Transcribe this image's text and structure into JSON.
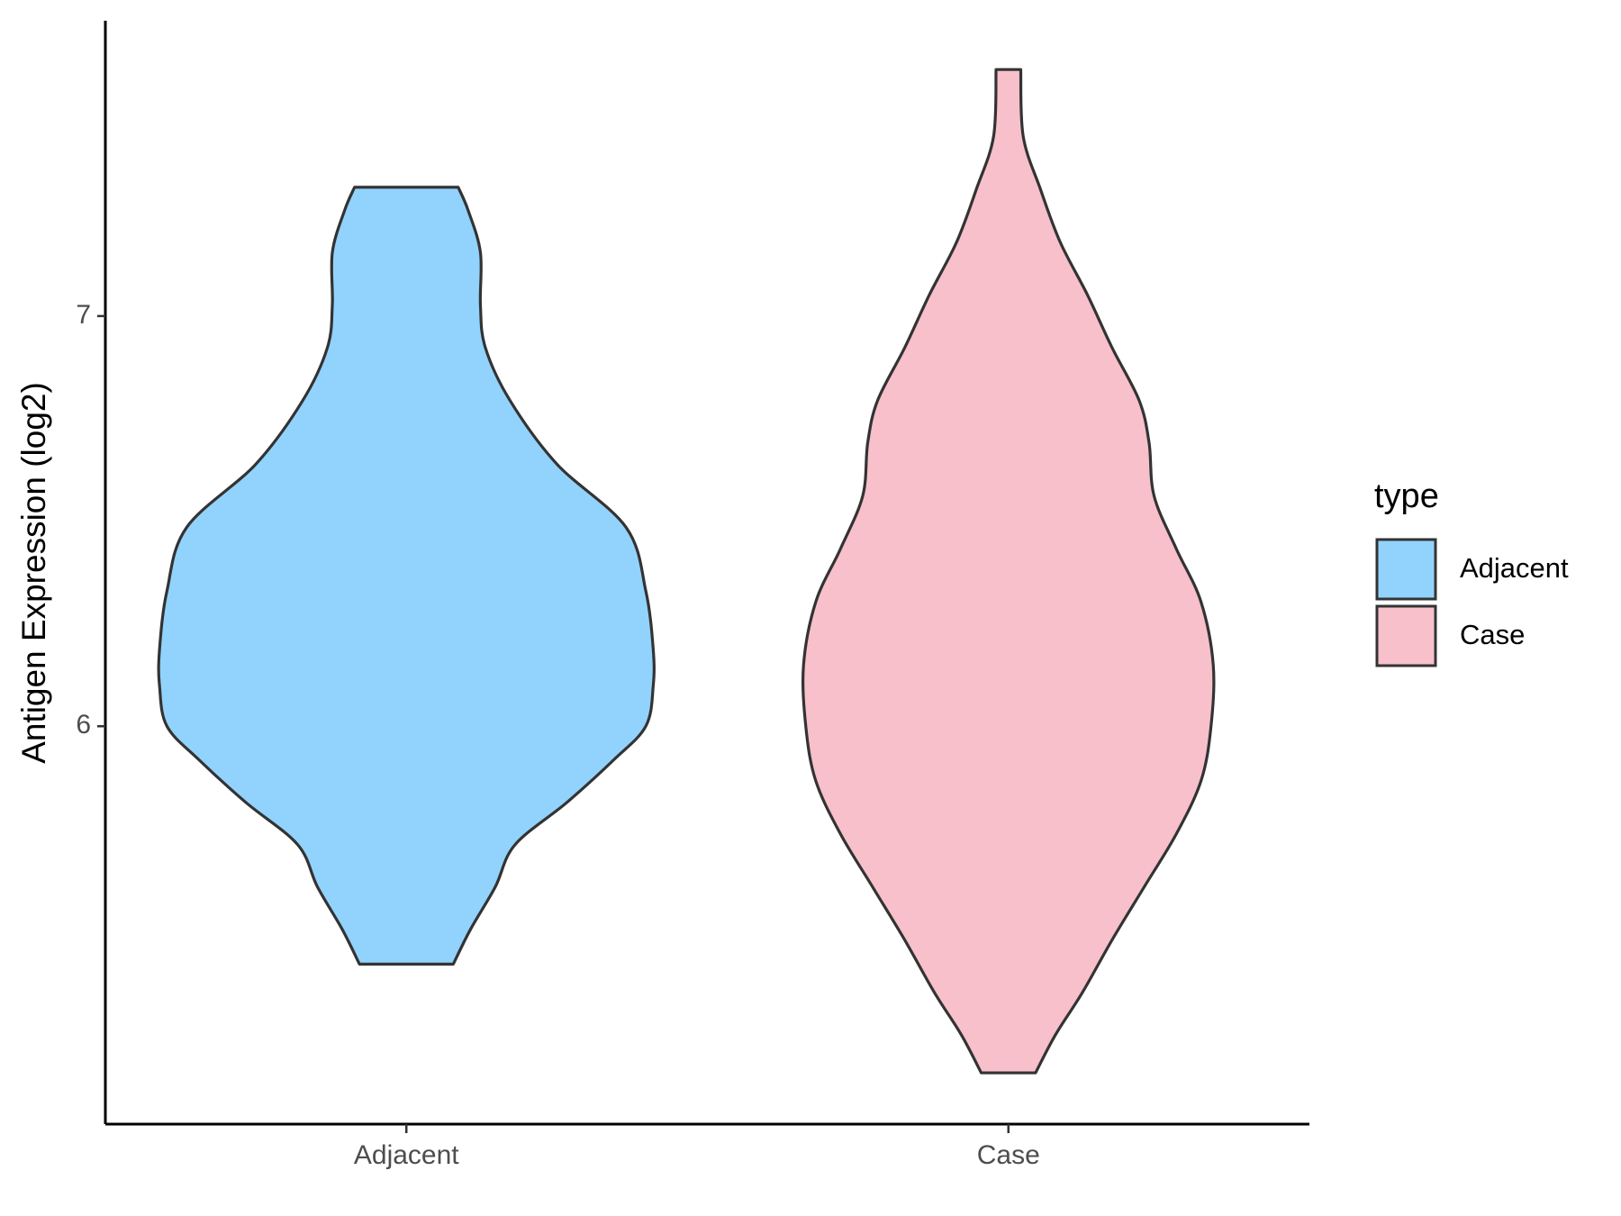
{
  "chart_data": {
    "type": "violin",
    "y_label": "Antigen Expression (log2)",
    "legend_title": "type",
    "categories": [
      "Adjacent",
      "Case"
    ],
    "ylim": [
      5.03,
      7.72
    ],
    "yticks": [
      6,
      7
    ],
    "series": [
      {
        "name": "Adjacent",
        "color": "#92d3fd",
        "y": [
          5.42,
          5.505,
          5.608,
          5.711,
          5.814,
          5.918,
          6.0,
          6.098,
          6.188,
          6.33,
          6.485,
          6.639,
          6.794,
          6.923,
          7.026,
          7.155,
          7.258,
          7.314
        ],
        "density": [
          0.19,
          0.26,
          0.36,
          0.44,
          0.65,
          0.84,
          0.97,
          1,
          1,
          0.97,
          0.89,
          0.61,
          0.42,
          0.32,
          0.3,
          0.3,
          0.25,
          0.21
        ]
      },
      {
        "name": "Case",
        "color": "#f7c0cb",
        "y": [
          5.155,
          5.247,
          5.351,
          5.479,
          5.608,
          5.737,
          5.866,
          5.995,
          6.149,
          6.304,
          6.433,
          6.562,
          6.691,
          6.794,
          6.923,
          7.052,
          7.18,
          7.309,
          7.438,
          7.601
        ],
        "density": [
          0.11,
          0.19,
          0.3,
          0.42,
          0.55,
          0.68,
          0.78,
          0.82,
          0.83,
          0.78,
          0.68,
          0.59,
          0.57,
          0.53,
          0.42,
          0.32,
          0.21,
          0.13,
          0.06,
          0.05
        ]
      }
    ]
  }
}
